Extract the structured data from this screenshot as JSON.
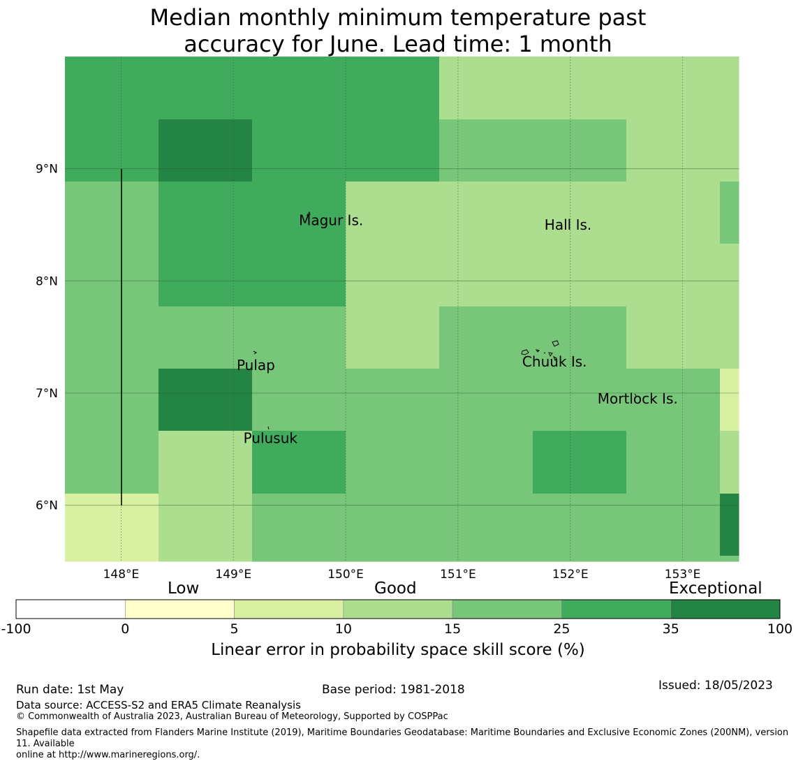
{
  "title_line1": "Median monthly minimum temperature past",
  "title_line2": "accuracy for June. Lead time: 1 month",
  "map": {
    "lon_range": [
      147.5,
      153.5
    ],
    "lat_range": [
      5.5,
      10.0
    ],
    "lon_ticks": [
      {
        "value": 148,
        "label": "148°E"
      },
      {
        "value": 149,
        "label": "149°E"
      },
      {
        "value": 150,
        "label": "150°E"
      },
      {
        "value": 151,
        "label": "151°E"
      },
      {
        "value": 152,
        "label": "152°E"
      },
      {
        "value": 153,
        "label": "153°E"
      }
    ],
    "lat_ticks": [
      {
        "value": 9,
        "label": "9°N"
      },
      {
        "value": 8,
        "label": "8°N"
      },
      {
        "value": 7,
        "label": "7°N"
      },
      {
        "value": 6,
        "label": "6°N"
      }
    ],
    "places": [
      {
        "name": "Magur Is.",
        "lon": 149.87,
        "lat": 8.53
      },
      {
        "name": "Hall Is.",
        "lon": 151.98,
        "lat": 8.49
      },
      {
        "name": "Pulap",
        "lon": 149.2,
        "lat": 7.24
      },
      {
        "name": "Chuuk Is.",
        "lon": 151.86,
        "lat": 7.27
      },
      {
        "name": "Mortlock Is.",
        "lon": 152.6,
        "lat": 6.94
      },
      {
        "name": "Pulusuk",
        "lon": 149.33,
        "lat": 6.59
      }
    ],
    "grid_note_units": "skill score class index",
    "cell_rows_note": "rows top to bottom, columns left to right"
  },
  "colorbar": {
    "categories": [
      {
        "label": "Low"
      },
      {
        "label": "Good"
      },
      {
        "label": "Exceptional"
      }
    ],
    "bins": [
      {
        "from": -100,
        "to": 0,
        "color": "#ffffff"
      },
      {
        "from": 0,
        "to": 5,
        "color": "#ffffcc"
      },
      {
        "from": 5,
        "to": 10,
        "color": "#d9f0a3"
      },
      {
        "from": 10,
        "to": 15,
        "color": "#addd8e"
      },
      {
        "from": 15,
        "to": 25,
        "color": "#78c679"
      },
      {
        "from": 25,
        "to": 35,
        "color": "#41ab5d"
      },
      {
        "from": 35,
        "to": 100,
        "color": "#238443"
      }
    ],
    "tick_labels": [
      "-100",
      "0",
      "5",
      "10",
      "15",
      "25",
      "35",
      "100"
    ],
    "title": "Linear error in probability space skill score (%)"
  },
  "footer": {
    "run_date": "Run date: 1st May",
    "base_period": "Base period: 1981-2018",
    "issued": "Issued: 18/05/2023",
    "data_source": "Data source: ACCESS-S2 and ERA5 Climate Reanalysis",
    "copyright": "© Commonwealth of Australia 2023, Australian Bureau of Meteorology, Supported by COSPPac",
    "shapefile_line1": "Shapefile data extracted from Flanders Marine Institute (2019), Maritime Boundaries Geodatabase: Maritime Boundaries and Exclusive Economic Zones (200NM), version 11. Available",
    "shapefile_line2": "online at http://www.marineregions.org/."
  }
}
